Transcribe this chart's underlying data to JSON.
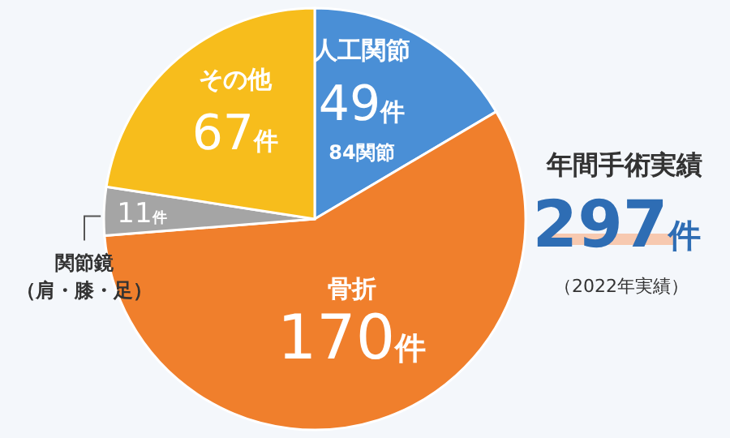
{
  "chart_data": {
    "type": "pie",
    "title": "年間手術実績",
    "subtitle": "（2022年実績）",
    "categories": [
      "人工関節",
      "骨折",
      "関節鏡（肩・膝・足）",
      "その他"
    ],
    "values": [
      49,
      170,
      11,
      67
    ],
    "colors": [
      "#4a8fd6",
      "#f07f2c",
      "#a5a5a5",
      "#f7bd1c"
    ],
    "value_labels": [
      "49件",
      "170件",
      "11件",
      "67件"
    ],
    "annotations": [
      "297件",
      "84関節"
    ]
  }
}
